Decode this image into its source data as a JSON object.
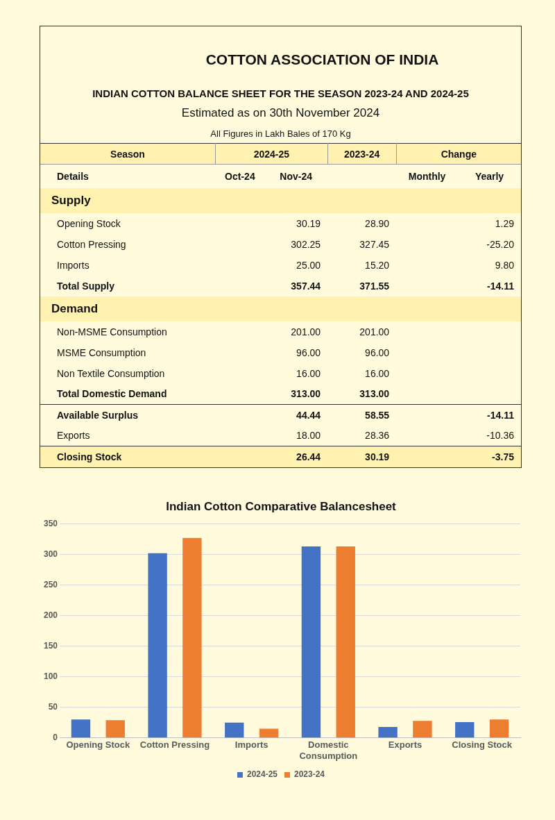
{
  "chart_data": [
    {
      "type": "other",
      "title": "COTTON ASSOCIATION OF INDIA",
      "subtitle": "INDIAN COTTON BALANCE SHEET FOR THE SEASON 2023-24 AND 2024-25",
      "annotations": [
        "Estimated as on 30th November 2024",
        "All Figures in Lakh Bales of 170 Kg",
        "Season",
        "2024-25",
        "2023-24",
        "Change",
        "Details"
      ],
      "categories": [
        "Oct-24",
        "Nov-24",
        null,
        "Monthly",
        "Yearly"
      ],
      "y_categories": [
        "Supply",
        "Opening Stock",
        "Cotton Pressing",
        "Imports",
        "Total Supply",
        "Demand",
        "Non-MSME Consumption",
        "MSME Consumption",
        "Non Textile Consumption",
        "Total Domestic Demand",
        "Available Surplus",
        "Exports",
        "Closing Stock"
      ],
      "cell_labels": [
        [
          null,
          null,
          null,
          null,
          null
        ],
        [
          null,
          "30.19",
          "28.90",
          null,
          "1.29"
        ],
        [
          null,
          "302.25",
          "327.45",
          null,
          "-25.20"
        ],
        [
          null,
          "25.00",
          "15.20",
          null,
          "9.80"
        ],
        [
          null,
          "357.44",
          "371.55",
          null,
          "-14.11"
        ],
        [
          null,
          null,
          null,
          null,
          null
        ],
        [
          null,
          "201.00",
          "201.00",
          null,
          null
        ],
        [
          null,
          "96.00",
          "96.00",
          null,
          null
        ],
        [
          null,
          "16.00",
          "16.00",
          null,
          null
        ],
        [
          null,
          "313.00",
          "313.00",
          null,
          null
        ],
        [
          null,
          "44.44",
          "58.55",
          null,
          "-14.11"
        ],
        [
          null,
          "18.00",
          "28.36",
          null,
          "-10.36"
        ],
        [
          null,
          "26.44",
          "30.19",
          null,
          "-3.75"
        ]
      ]
    },
    {
      "type": "bar",
      "title": "Indian Cotton Comparative Balancesheet",
      "categories": [
        "Opening Stock",
        "Cotton Pressing",
        "Imports",
        "Domestic Consumption",
        "Exports",
        "Closing Stock"
      ],
      "series": [
        {
          "name": "2024-25",
          "color": "#4472c4",
          "values": [
            30,
            302,
            25,
            313,
            18,
            26
          ]
        },
        {
          "name": "2023-24",
          "color": "#ed7d31",
          "values": [
            29,
            327,
            15,
            313,
            28,
            30
          ]
        }
      ],
      "ylim": [
        0,
        350
      ],
      "yticks": [
        0,
        50,
        100,
        150,
        200,
        250,
        300,
        350
      ],
      "grid": "y",
      "legend": "bottom"
    }
  ]
}
